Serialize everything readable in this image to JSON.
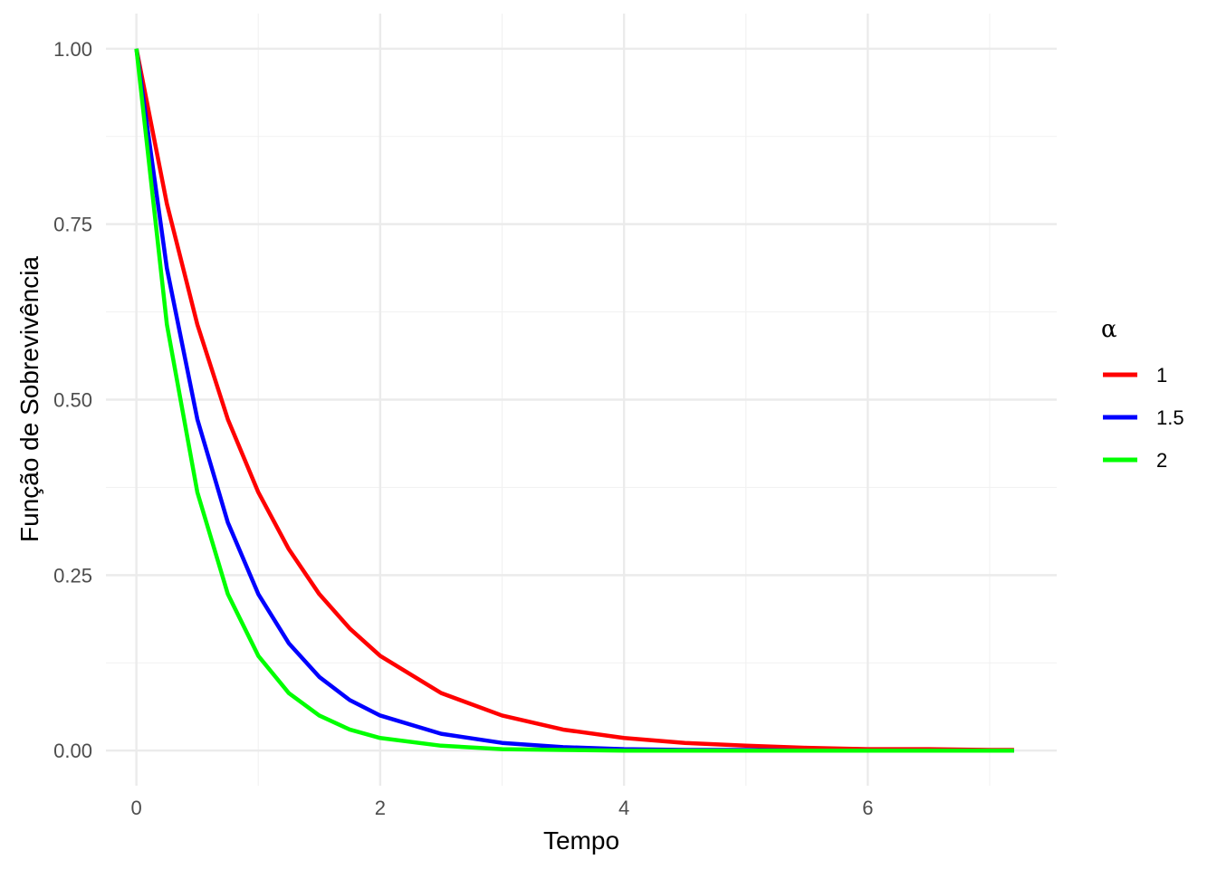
{
  "chart_data": {
    "type": "line",
    "title": "",
    "xlabel": "Tempo",
    "ylabel": "Função de Sobrevivência",
    "xlim": [
      -0.25,
      7.55
    ],
    "ylim": [
      -0.05,
      1.05
    ],
    "x_ticks": [
      0,
      2,
      4,
      6
    ],
    "x_tick_labels": [
      "0",
      "2",
      "4",
      "6"
    ],
    "y_ticks": [
      0,
      0.25,
      0.5,
      0.75,
      1.0
    ],
    "y_tick_labels": [
      "0.00",
      "0.25",
      "0.50",
      "0.75",
      "1.00"
    ],
    "grid": true,
    "legend": {
      "title": "α",
      "position": "right",
      "entries": [
        "1",
        "1.5",
        "2"
      ]
    },
    "series": [
      {
        "name": "1",
        "color": "#ff0000",
        "x": [
          0,
          0.25,
          0.5,
          0.75,
          1,
          1.25,
          1.5,
          1.75,
          2,
          2.5,
          3,
          3.5,
          4,
          4.5,
          5,
          5.5,
          6,
          6.5,
          7,
          7.2
        ],
        "y": [
          1,
          0.779,
          0.607,
          0.472,
          0.368,
          0.287,
          0.223,
          0.174,
          0.135,
          0.082,
          0.05,
          0.03,
          0.018,
          0.011,
          0.007,
          0.004,
          0.002,
          0.002,
          0.001,
          0.001
        ]
      },
      {
        "name": "1.5",
        "color": "#0000ff",
        "x": [
          0,
          0.25,
          0.5,
          0.75,
          1,
          1.25,
          1.5,
          1.75,
          2,
          2.5,
          3,
          3.5,
          4,
          4.5,
          5,
          5.5,
          6,
          6.5,
          7,
          7.2
        ],
        "y": [
          1,
          0.687,
          0.472,
          0.325,
          0.223,
          0.153,
          0.105,
          0.072,
          0.05,
          0.024,
          0.011,
          0.005,
          0.002,
          0.001,
          0.001,
          0,
          0,
          0,
          0,
          0
        ]
      },
      {
        "name": "2",
        "color": "#00ff00",
        "x": [
          0,
          0.25,
          0.5,
          0.75,
          1,
          1.25,
          1.5,
          1.75,
          2,
          2.5,
          3,
          3.5,
          4,
          4.5,
          5,
          5.5,
          6,
          6.5,
          7,
          7.2
        ],
        "y": [
          1,
          0.607,
          0.368,
          0.223,
          0.135,
          0.082,
          0.05,
          0.03,
          0.018,
          0.007,
          0.002,
          0.001,
          0,
          0,
          0,
          0,
          0,
          0,
          0,
          0
        ]
      }
    ]
  }
}
